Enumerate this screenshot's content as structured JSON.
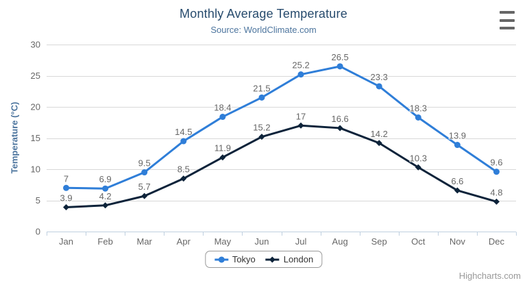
{
  "chart_data": {
    "type": "line",
    "title": "Monthly Average Temperature",
    "subtitle": "Source: WorldClimate.com",
    "categories": [
      "Jan",
      "Feb",
      "Mar",
      "Apr",
      "May",
      "Jun",
      "Jul",
      "Aug",
      "Sep",
      "Oct",
      "Nov",
      "Dec"
    ],
    "series": [
      {
        "name": "Tokyo",
        "color": "#2f7ed8",
        "marker": "circle",
        "values": [
          7,
          6.9,
          9.5,
          14.5,
          18.4,
          21.5,
          25.2,
          26.5,
          23.3,
          18.3,
          13.9,
          9.6
        ]
      },
      {
        "name": "London",
        "color": "#0d233a",
        "marker": "diamond",
        "values": [
          3.9,
          4.2,
          5.7,
          8.5,
          11.9,
          15.2,
          17,
          16.6,
          14.2,
          10.3,
          6.6,
          4.8
        ]
      }
    ],
    "xlabel": "",
    "ylabel": "Temperature (°C)",
    "ylim": [
      0,
      30
    ],
    "ytick_step": 5,
    "grid": true,
    "legend_position": "bottom-center",
    "data_labels": true
  },
  "export_menu": {
    "icon": "hamburger-icon"
  },
  "credits": {
    "label": "Highcharts.com"
  },
  "colors": {
    "title-color": "#274b6d",
    "subtitle-color": "#4d759e",
    "axis-title-color": "#4d759e",
    "tick-label-color": "#666666",
    "data-label-color": "#666666",
    "grid-color": "#d8d8d8",
    "axis-line-color": "#c0d0e0",
    "legend-text-color": "#333333",
    "legend-border-color": "#999999",
    "credits-color": "#999999",
    "menu-icon-color": "#666666"
  }
}
